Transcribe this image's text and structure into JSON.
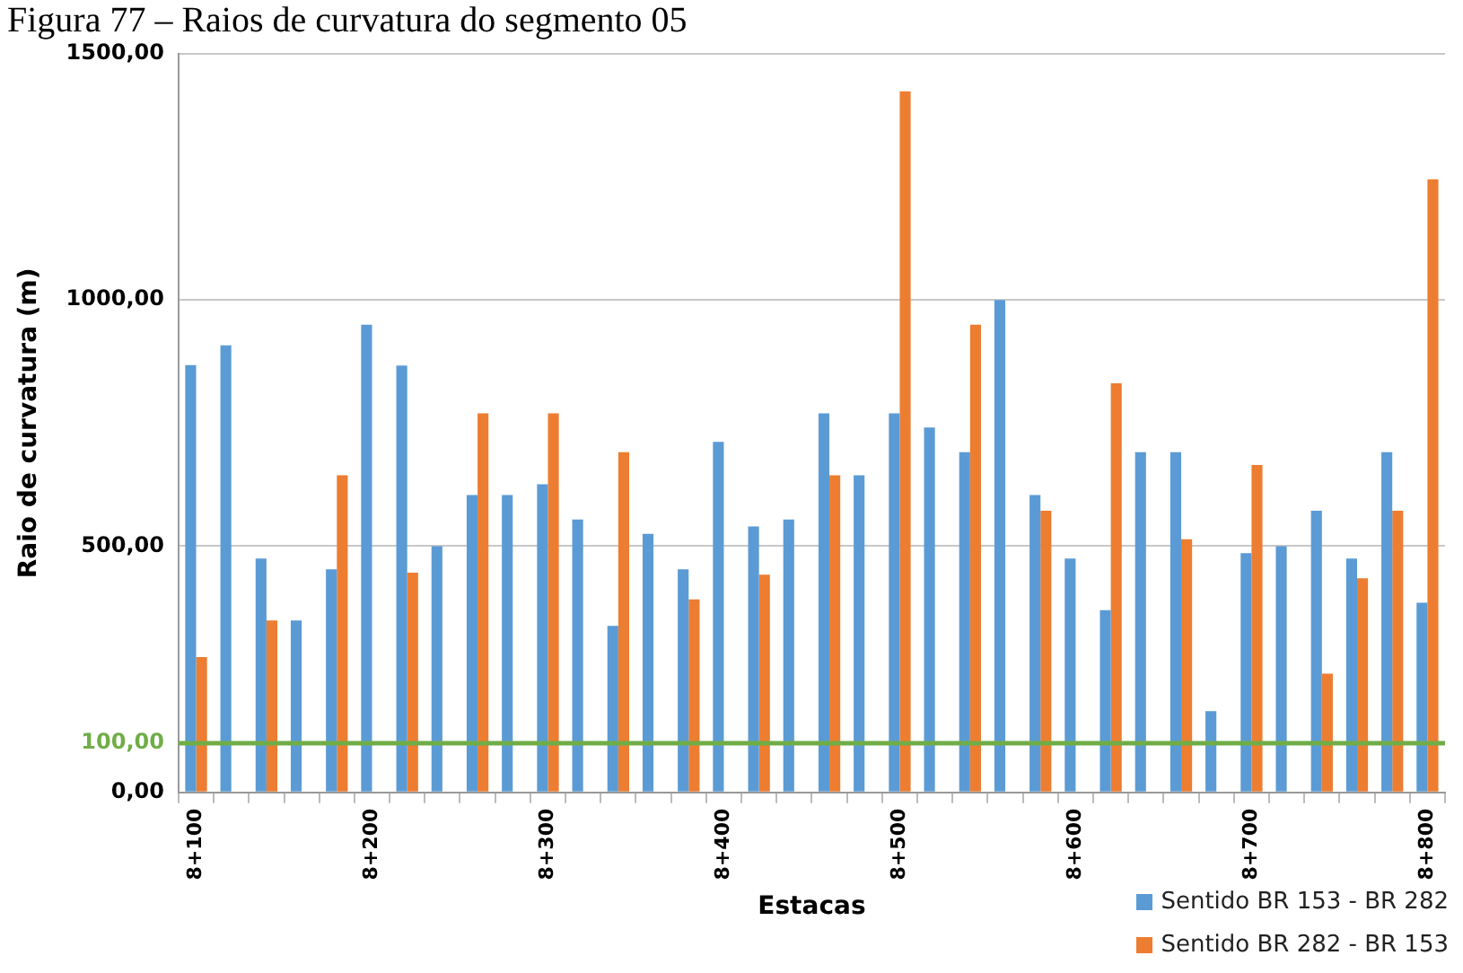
{
  "chart_data": {
    "type": "bar",
    "title": "Figura 77 – Raios de curvatura do segmento 05",
    "xlabel": "Estacas",
    "ylabel": "Raio de curvatura (m)",
    "categories": [
      "8+100",
      null,
      null,
      null,
      null,
      "8+200",
      null,
      null,
      null,
      null,
      "8+300",
      null,
      null,
      null,
      null,
      "8+400",
      null,
      null,
      null,
      null,
      "8+500",
      null,
      null,
      null,
      null,
      "8+600",
      null,
      null,
      null,
      null,
      "8+700",
      null,
      null,
      null,
      null,
      "8+800"
    ],
    "series": [
      {
        "name": "Sentido BR 153 - BR 282",
        "color": "#5b9bd5",
        "values": [
          868,
          908,
          475,
          349,
          453,
          950,
          867,
          500,
          604,
          604,
          626,
          554,
          338,
          525,
          453,
          712,
          540,
          554,
          770,
          644,
          770,
          741,
          691,
          1000,
          604,
          475,
          370,
          691,
          691,
          165,
          486,
          500,
          572,
          475,
          691,
          385
        ]
      },
      {
        "name": "Sentido BR 282 - BR 153",
        "color": "#ed7d31",
        "values": [
          275,
          null,
          349,
          null,
          644,
          null,
          446,
          null,
          770,
          null,
          770,
          null,
          691,
          null,
          392,
          null,
          442,
          null,
          644,
          null,
          1424,
          null,
          950,
          null,
          572,
          null,
          831,
          null,
          514,
          null,
          665,
          null,
          241,
          435,
          572,
          1245
        ]
      }
    ],
    "ylim": [
      0,
      1500
    ],
    "yticks": [
      {
        "value": 0,
        "label": "0,00"
      },
      {
        "value": 500,
        "label": "500,00"
      },
      {
        "value": 1000,
        "label": "1000,00"
      },
      {
        "value": 1500,
        "label": "1500,00"
      }
    ],
    "ref_lines": [
      {
        "axis": "y",
        "value": 100,
        "label": "100,00",
        "color": "#70ad47"
      }
    ],
    "grid": "y",
    "legend": "bottom right"
  }
}
